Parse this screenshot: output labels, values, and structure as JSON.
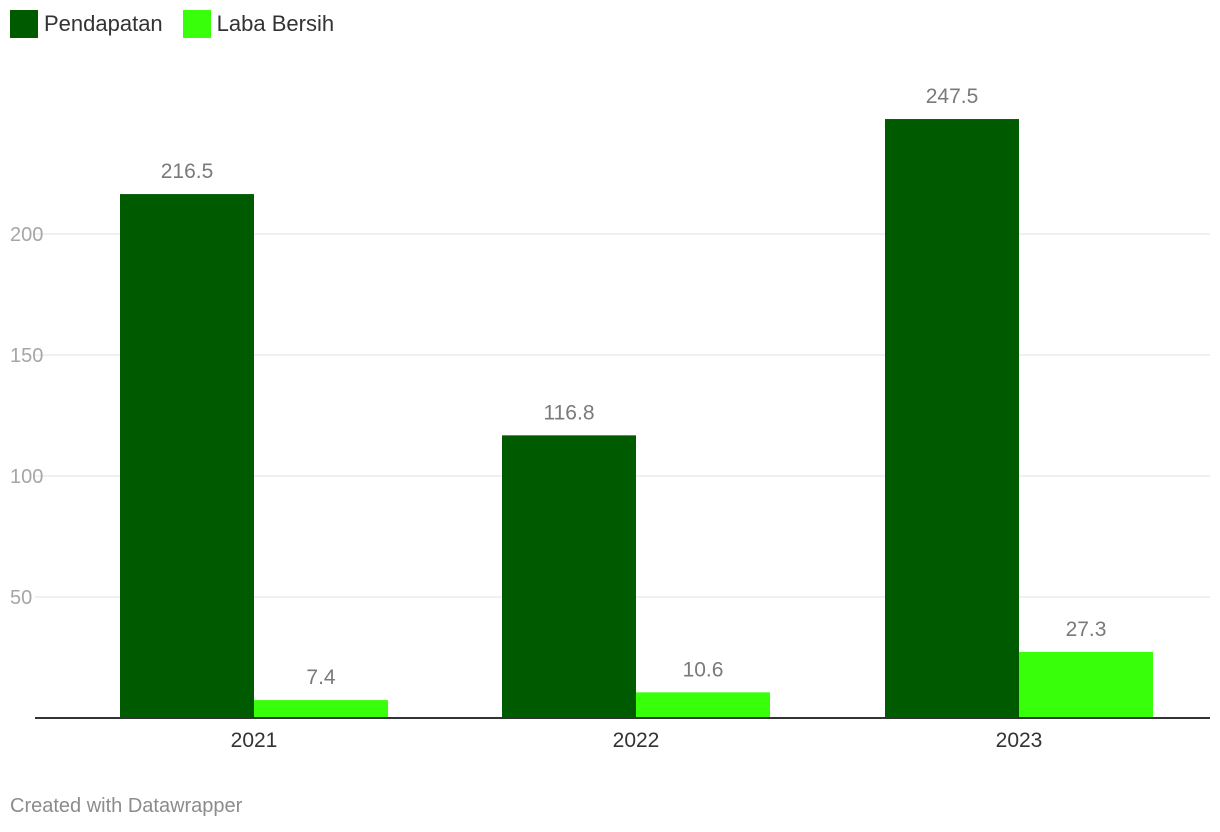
{
  "chart_data": {
    "type": "bar",
    "categories": [
      "2021",
      "2022",
      "2023"
    ],
    "series": [
      {
        "name": "Pendapatan",
        "values": [
          216.5,
          116.8,
          247.5
        ],
        "color": "#005a00"
      },
      {
        "name": "Laba Bersih",
        "values": [
          7.4,
          10.6,
          27.3
        ],
        "color": "#38ff0a"
      }
    ],
    "value_labels": [
      [
        "216.5",
        "116.8",
        "247.5"
      ],
      [
        "7.4",
        "10.6",
        "27.3"
      ]
    ],
    "yticks": [
      50,
      100,
      150,
      200
    ],
    "ytick_labels": [
      "50",
      "100",
      "150",
      "200"
    ],
    "ylim": [
      0,
      250
    ],
    "grid": true,
    "legend_position": "top-left"
  },
  "legend": [
    {
      "label": "Pendapatan",
      "color": "#005a00"
    },
    {
      "label": "Laba Bersih",
      "color": "#38ff0a"
    }
  ],
  "footer": "Created with Datawrapper"
}
